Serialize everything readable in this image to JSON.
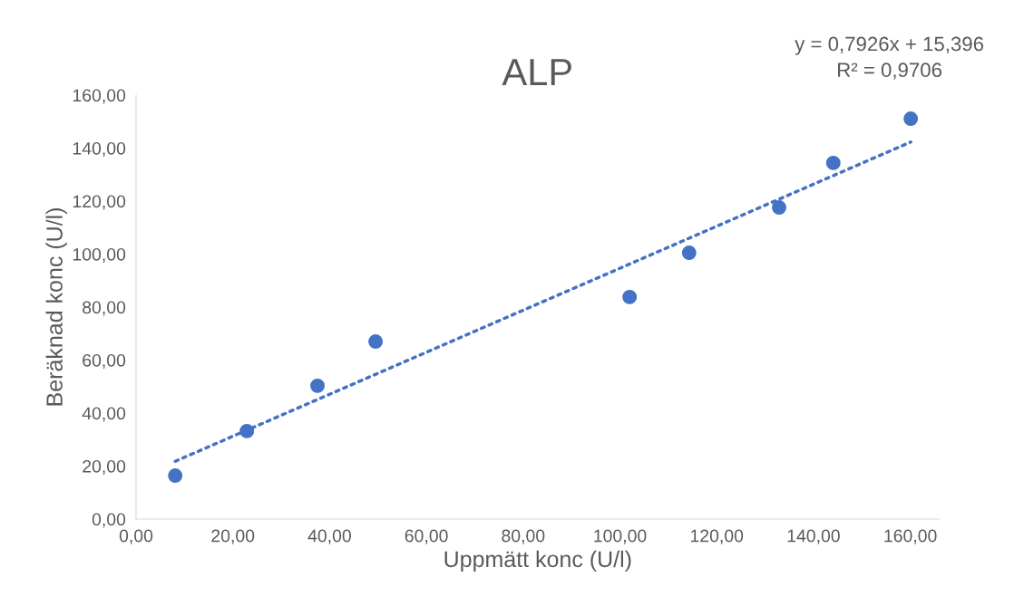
{
  "chart_data": {
    "type": "scatter",
    "title": "ALP",
    "xlabel": "Uppmätt konc (U/l)",
    "ylabel": "Beräknad konc (U/l)",
    "x": [
      8.1,
      22.9,
      37.5,
      49.5,
      102.0,
      114.3,
      132.9,
      144.1,
      160.1
    ],
    "series": [
      {
        "color": "#4472c4",
        "values": [
          16.4,
          33.2,
          50.3,
          67.0,
          83.8,
          100.5,
          117.6,
          134.4,
          151.1
        ],
        "marker": "circle"
      },
      {
        "type": "line",
        "color": "#4472c4",
        "x": [
          8.1,
          160.1
        ],
        "values": [
          21.8,
          142.3
        ],
        "line_style": "dotted",
        "marker": "none"
      }
    ],
    "xlim": [
      0,
      166
    ],
    "ylim": [
      0,
      160
    ],
    "xticks": [
      {
        "value": 0,
        "label": "0,00"
      },
      {
        "value": 20,
        "label": "20,00"
      },
      {
        "value": 40,
        "label": "40,00"
      },
      {
        "value": 60,
        "label": "60,00"
      },
      {
        "value": 80,
        "label": "80,00"
      },
      {
        "value": 100,
        "label": "100,00"
      },
      {
        "value": 120,
        "label": "120,00"
      },
      {
        "value": 140,
        "label": "140,00"
      },
      {
        "value": 160,
        "label": "160,00"
      }
    ],
    "yticks": [
      {
        "value": 0,
        "label": "0,00"
      },
      {
        "value": 20,
        "label": "20,00"
      },
      {
        "value": 40,
        "label": "40,00"
      },
      {
        "value": 60,
        "label": "60,00"
      },
      {
        "value": 80,
        "label": "80,00"
      },
      {
        "value": 100,
        "label": "100,00"
      },
      {
        "value": 120,
        "label": "120,00"
      },
      {
        "value": 140,
        "label": "140,00"
      },
      {
        "value": 160,
        "label": "160,00"
      }
    ],
    "annotations": [
      "y = 0,7926x + 15,396\nR² = 0,9706"
    ],
    "grid": false,
    "legend": false
  }
}
